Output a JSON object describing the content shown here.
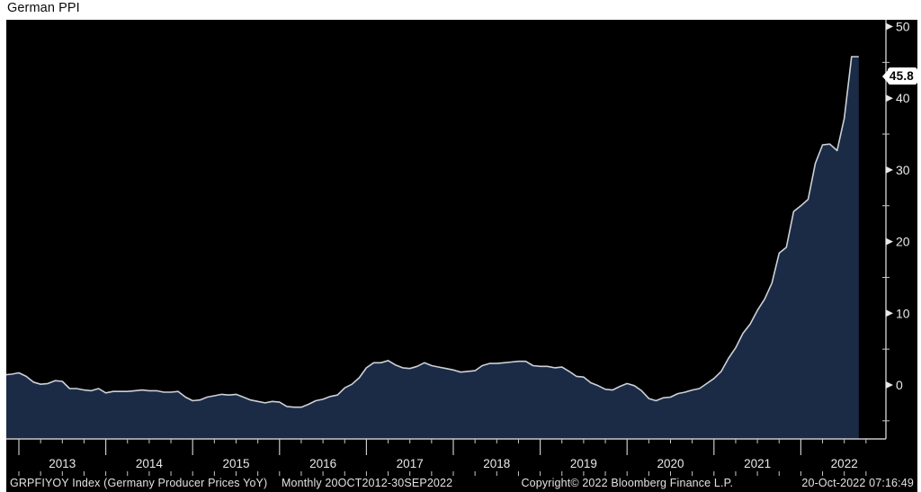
{
  "title": "German PPI",
  "y_axis": {
    "last_value": "45.8"
  },
  "chart_data": {
    "type": "area",
    "title": "German PPI",
    "series_name": "GRPFIYOY Index (Germany Producer Prices YoY)",
    "frequency": "monthly",
    "x_start": "Oct 2012",
    "x_end": "Sep 2022",
    "xlabel": "",
    "ylabel": "",
    "ylim": [
      -7.5,
      51
    ],
    "grid": "off",
    "legend_position": "none",
    "yticks_major": [
      0,
      10,
      20,
      30,
      40,
      50
    ],
    "yticks_minor": [
      -5,
      5,
      15,
      25,
      35,
      45
    ],
    "xticks_years": [
      2013,
      2014,
      2015,
      2016,
      2017,
      2018,
      2019,
      2020,
      2021,
      2022
    ],
    "last_value": 45.8,
    "monthly_values": [
      1.5,
      1.4,
      1.5,
      1.7,
      1.2,
      0.4,
      0.1,
      0.2,
      0.6,
      0.5,
      -0.5,
      -0.5,
      -0.7,
      -0.8,
      -0.5,
      -1.1,
      -0.9,
      -0.9,
      -0.9,
      -0.8,
      -0.7,
      -0.8,
      -0.8,
      -1.0,
      -1.0,
      -0.9,
      -1.7,
      -2.2,
      -2.1,
      -1.7,
      -1.5,
      -1.3,
      -1.4,
      -1.3,
      -1.7,
      -2.1,
      -2.3,
      -2.5,
      -2.3,
      -2.4,
      -3.0,
      -3.1,
      -3.1,
      -2.7,
      -2.2,
      -2.0,
      -1.6,
      -1.4,
      -0.4,
      0.1,
      1.0,
      2.4,
      3.1,
      3.1,
      3.4,
      2.8,
      2.4,
      2.3,
      2.6,
      3.1,
      2.7,
      2.5,
      2.3,
      2.1,
      1.8,
      1.9,
      2.0,
      2.7,
      3.0,
      3.0,
      3.1,
      3.2,
      3.3,
      3.3,
      2.7,
      2.6,
      2.6,
      2.4,
      2.5,
      1.9,
      1.2,
      1.1,
      0.3,
      -0.1,
      -0.6,
      -0.7,
      -0.2,
      0.2,
      -0.1,
      -0.8,
      -1.9,
      -2.2,
      -1.8,
      -1.7,
      -1.2,
      -1.0,
      -0.7,
      -0.5,
      0.2,
      0.9,
      1.9,
      3.7,
      5.2,
      7.2,
      8.5,
      10.4,
      12.0,
      14.2,
      18.4,
      19.2,
      24.2,
      25.0,
      25.9,
      30.9,
      33.5,
      33.6,
      32.7,
      37.2,
      45.8,
      45.8
    ],
    "colors": {
      "background": "#000000",
      "area_fill": "#1b2b46",
      "line": "#ccd1d8",
      "axis": "#c8c8c8",
      "tick_label": "#e8e8e8"
    }
  },
  "footer": {
    "ticker": "GRPFIYOY Index (Germany Producer Prices YoY)",
    "periodicity": "Monthly 20OCT2012-30SEP2022",
    "copyright": "Copyright© 2022 Bloomberg Finance L.P.",
    "datetime": "20-Oct-2022 07:16:49"
  }
}
